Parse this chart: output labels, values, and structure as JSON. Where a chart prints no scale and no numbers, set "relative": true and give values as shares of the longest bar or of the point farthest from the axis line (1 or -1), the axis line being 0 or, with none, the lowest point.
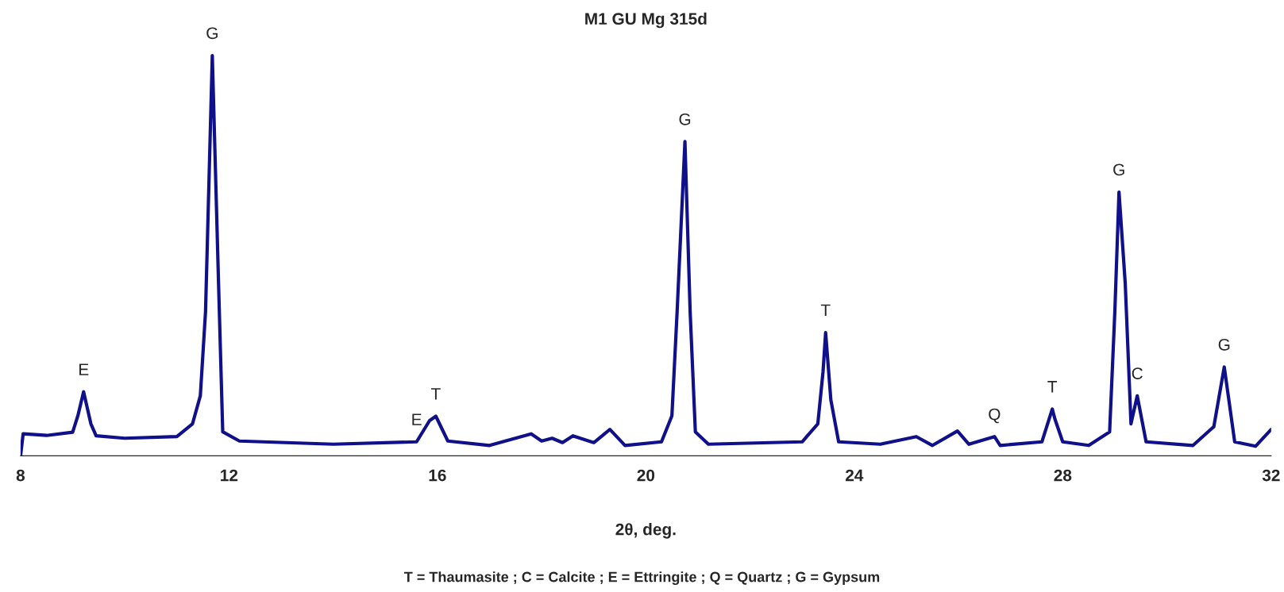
{
  "chart_data": {
    "type": "line",
    "title": "M1 GU Mg 315d",
    "xlabel": "2θ, deg.",
    "relative": true,
    "xlim": [
      8,
      32
    ],
    "xticks": [
      8,
      12,
      16,
      20,
      24,
      28,
      32
    ],
    "grid": false,
    "legend": false,
    "marker": "none",
    "line_style": "solid",
    "x": [
      8.0,
      8.05,
      8.5,
      9.0,
      9.1,
      9.21,
      9.35,
      9.45,
      10.0,
      11.0,
      11.3,
      11.45,
      11.55,
      11.68,
      11.8,
      11.88,
      12.2,
      14.0,
      15.6,
      15.85,
      15.97,
      16.2,
      17.0,
      17.8,
      18.0,
      18.2,
      18.4,
      18.6,
      19.0,
      19.31,
      19.6,
      20.3,
      20.5,
      20.6,
      20.75,
      20.85,
      20.95,
      21.2,
      23.0,
      23.3,
      23.4,
      23.45,
      23.55,
      23.7,
      24.5,
      25.19,
      25.5,
      25.98,
      26.2,
      26.69,
      26.8,
      27.6,
      27.8,
      27.85,
      28.0,
      28.5,
      28.9,
      29.0,
      29.08,
      29.2,
      29.31,
      29.43,
      29.6,
      30.5,
      30.9,
      31.1,
      31.3,
      31.7,
      32.0
    ],
    "series": [
      {
        "color": "#10108a",
        "values": [
          0.0,
          0.055,
          0.051,
          0.059,
          0.1,
          0.16,
          0.08,
          0.05,
          0.044,
          0.048,
          0.08,
          0.15,
          0.36,
          1.0,
          0.43,
          0.06,
          0.037,
          0.029,
          0.035,
          0.088,
          0.099,
          0.037,
          0.026,
          0.055,
          0.037,
          0.044,
          0.033,
          0.05,
          0.033,
          0.066,
          0.026,
          0.035,
          0.1,
          0.36,
          0.785,
          0.36,
          0.06,
          0.029,
          0.035,
          0.08,
          0.21,
          0.308,
          0.14,
          0.035,
          0.029,
          0.048,
          0.026,
          0.062,
          0.029,
          0.048,
          0.026,
          0.035,
          0.117,
          0.092,
          0.035,
          0.026,
          0.06,
          0.36,
          0.659,
          0.43,
          0.08,
          0.15,
          0.035,
          0.026,
          0.073,
          0.222,
          0.035,
          0.024,
          0.066
        ]
      }
    ],
    "annotations": [
      {
        "text": "E",
        "x": 9.21,
        "y": 0.16
      },
      {
        "text": "G",
        "x": 11.68,
        "y": 1.0
      },
      {
        "text": "E",
        "x": 15.6,
        "y": 0.035
      },
      {
        "text": "T",
        "x": 15.97,
        "y": 0.099
      },
      {
        "text": "G",
        "x": 20.75,
        "y": 0.785
      },
      {
        "text": "T",
        "x": 23.45,
        "y": 0.308
      },
      {
        "text": "Q",
        "x": 26.69,
        "y": 0.048
      },
      {
        "text": "T",
        "x": 27.8,
        "y": 0.117
      },
      {
        "text": "G",
        "x": 29.08,
        "y": 0.659
      },
      {
        "text": "C",
        "x": 29.43,
        "y": 0.15
      },
      {
        "text": "G",
        "x": 31.1,
        "y": 0.222
      },
      "T = Thaumasite ; C = Calcite ; E = Ettringite ; Q = Quartz ; G = Gypsum"
    ]
  }
}
